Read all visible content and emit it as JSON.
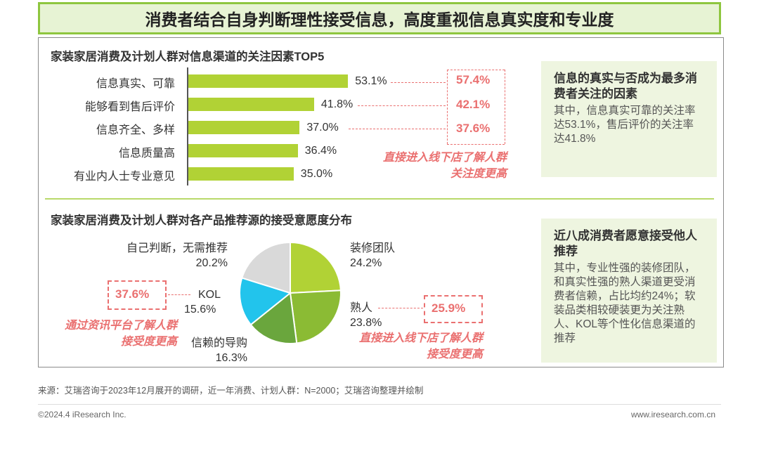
{
  "header": {
    "title": "消费者结合自身判断理性接受信息，高度重视信息真实度和专业度"
  },
  "colors": {
    "accent_green": "#8ec63f",
    "bar_green": "#b1d235",
    "highlight_pink": "#ea7070"
  },
  "section1": {
    "title": "家装家居消费及计划人群对信息渠道的关注因素TOP5",
    "highlights": [
      "57.4%",
      "42.1%",
      "37.6%"
    ],
    "note_line1": "直接进入线下店了解人群",
    "note_line2": "关注度更高"
  },
  "section2": {
    "title": "家装家居消费及计划人群对各产品推荐源的接受意愿度分布",
    "highlight_kol": "37.6%",
    "highlight_shuren": "25.9%",
    "note_left_line1": "通过资讯平台了解人群",
    "note_left_line2": "接受度更高",
    "note_right_line1": "直接进入线下店了解人群",
    "note_right_line2": "接受度更高"
  },
  "chart_data": [
    {
      "type": "bar",
      "orientation": "horizontal",
      "title": "家装家居消费及计划人群对信息渠道的关注因素TOP5",
      "categories": [
        "信息真实、可靠",
        "能够看到售后评价",
        "信息齐全、多样",
        "信息质量高",
        "有业内人士专业意见"
      ],
      "values": [
        53.1,
        41.8,
        37.0,
        36.4,
        35.0
      ],
      "labels": [
        "53.1%",
        "41.8%",
        "37.0%",
        "36.4%",
        "35.0%"
      ]
    },
    {
      "type": "pie",
      "title": "家装家居消费及计划人群对各产品推荐源的接受意愿度分布",
      "slices": [
        {
          "name": "装修团队",
          "value": 24.2,
          "label": "24.2%",
          "color": "#b1d235"
        },
        {
          "name": "熟人",
          "value": 23.8,
          "label": "23.8%",
          "color": "#8bbb34"
        },
        {
          "name": "信赖的导购",
          "value": 16.3,
          "label": "16.3%",
          "color": "#6aa63d"
        },
        {
          "name": "KOL",
          "value": 15.6,
          "label": "15.6%",
          "color": "#22c4ec"
        },
        {
          "name": "自己判断，无需推荐",
          "value": 20.2,
          "label": "20.2%",
          "color": "#d9d9d9"
        }
      ]
    }
  ],
  "sidebox1": {
    "heading": "信息的真实与否成为最多消费者关注的因素",
    "text": "其中，信息真实可靠的关注率达53.1%，售后评价的关注率达41.8%"
  },
  "sidebox2": {
    "heading": "近八成消费者愿意接受他人推荐",
    "text": "其中，专业性强的装修团队，和真实性强的熟人渠道更受消费者信赖，占比均约24%；软装品类相较硬装更为关注熟人、KOL等个性化信息渠道的推荐"
  },
  "footer": {
    "source": "来源：艾瑞咨询于2023年12月展开的调研，近一年消费、计划人群：N=2000；艾瑞咨询整理并绘制",
    "copyright": "©2024.4 iResearch Inc.",
    "website": "www.iresearch.com.cn"
  }
}
